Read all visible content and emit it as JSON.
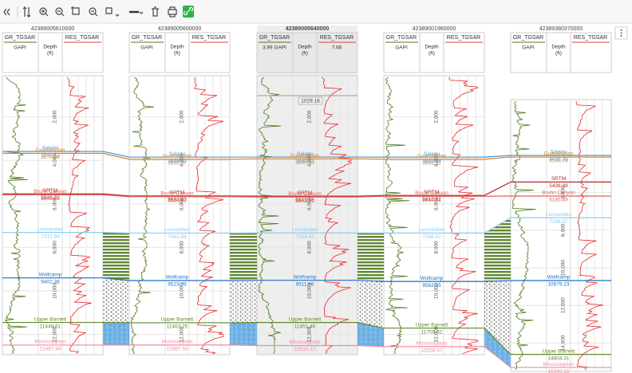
{
  "formations": [
    {
      "name": "Salado",
      "color": "#3d9be0"
    },
    {
      "name": "Guadalupian",
      "color": "#d9822b"
    },
    {
      "name": "SRTM",
      "color": "#b22a2a"
    },
    {
      "name": "Bruhn Canyon",
      "color": "#e0605a"
    },
    {
      "name": "Leonardian",
      "color": "#8ecbf0"
    },
    {
      "name": "Wolfcamp",
      "color": "#1f6fc0"
    },
    {
      "name": "Upper Barnett",
      "color": "#5f8a2a"
    },
    {
      "name": "Mississippian",
      "color": "#f08aa0"
    }
  ],
  "wells": [
    {
      "id": "42389005610000",
      "gr_curve": "GR_TGSAR",
      "res_curve": "RES_TGSAR",
      "gr_unit": "GAPI",
      "depth_label": "Depth",
      "depth_unit": "(ft)",
      "depth_ticks": [
        "2,000",
        "4,000",
        "6,000",
        "8,000",
        "10,000",
        "12,000"
      ],
      "tops": [
        {
          "formation": 0,
          "depth": "3590.12"
        },
        {
          "formation": 1,
          "depth": "3676.58"
        },
        {
          "formation": 2,
          "depth": "5540.20"
        },
        {
          "formation": 3,
          "depth": "5581.65"
        },
        {
          "formation": 4,
          "depth": "7312.84"
        },
        {
          "formation": 5,
          "depth": "9402.38"
        },
        {
          "formation": 6,
          "depth": "11448.61"
        },
        {
          "formation": 7,
          "depth": "12487.84"
        }
      ]
    },
    {
      "id": "42389005600000",
      "gr_curve": "GR_TGSAR",
      "res_curve": "RES_TGSAR",
      "gr_unit": "GAPI",
      "depth_label": "Depth",
      "depth_unit": "(ft)",
      "depth_ticks": [
        "2,000",
        "4,000",
        "6,000",
        "8,000",
        "10,000",
        "12,000"
      ],
      "tops": [
        {
          "formation": 0,
          "depth": "3848.60"
        },
        {
          "formation": 1,
          "depth": "3946.37"
        },
        {
          "formation": 2,
          "depth": "5634.40"
        },
        {
          "formation": 3,
          "depth": "5668.12"
        },
        {
          "formation": 4,
          "depth": "7342.84"
        },
        {
          "formation": 5,
          "depth": "9523.76"
        },
        {
          "formation": 6,
          "depth": "11463.25"
        },
        {
          "formation": 7,
          "depth": "12487.53"
        }
      ]
    },
    {
      "id": "42389005640000",
      "gr_curve": "GR_TGSAR",
      "res_curve": "RES_TGSAR",
      "gr_unit": "3.99 GAPI",
      "res_readout": "7.66",
      "cursor_depth": "1029.16",
      "depth_label": "Depth",
      "depth_unit": "(ft)",
      "depth_ticks": [
        "2,000",
        "4,000",
        "6,000",
        "8,000",
        "10,000",
        "12,000"
      ],
      "tops": [
        {
          "formation": 0,
          "depth": "3848.43"
        },
        {
          "formation": 1,
          "depth": "3930.98"
        },
        {
          "formation": 2,
          "depth": "5643.46"
        },
        {
          "formation": 3,
          "depth": "5681.20"
        },
        {
          "formation": 4,
          "depth": "7334.63"
        },
        {
          "formation": 5,
          "depth": "9511.96"
        },
        {
          "formation": 6,
          "depth": "11451.46"
        },
        {
          "formation": 7,
          "depth": "12510.12"
        }
      ]
    },
    {
      "id": "42389001960000",
      "gr_curve": "GR_TGSAR",
      "res_curve": "RES_TGSAR",
      "gr_unit": "GAPI",
      "depth_label": "Depth",
      "depth_unit": "(ft)",
      "depth_ticks": [
        "2,000",
        "4,000",
        "6,000",
        "8,000",
        "10,000",
        "12,000"
      ],
      "tops": [
        {
          "formation": 0,
          "depth": "3849.88"
        },
        {
          "formation": 1,
          "depth": "3946.12"
        },
        {
          "formation": 2,
          "depth": "5612.32"
        },
        {
          "formation": 3,
          "depth": "5650.71"
        },
        {
          "formation": 4,
          "depth": "7338.52"
        },
        {
          "formation": 5,
          "depth": "9563.95"
        },
        {
          "formation": 6,
          "depth": "11709.32"
        },
        {
          "formation": 7,
          "depth": "12558.47"
        }
      ]
    },
    {
      "id": "42389380370000",
      "gr_curve": "GR_TGSAR",
      "res_curve": "RES_TGSAR",
      "gr_unit": "GAPI",
      "depth_label": "Depth",
      "depth_unit": "(ft)",
      "depth_ticks": [
        "6,000",
        "8,000",
        "10,000",
        "12,000",
        "14,000"
      ],
      "tops": [
        {
          "formation": 0,
          "depth": "4026.35"
        },
        {
          "formation": 1,
          "depth": "4108.74"
        },
        {
          "formation": 2,
          "depth": "5438.99"
        },
        {
          "formation": 3,
          "depth": "6185.49"
        },
        {
          "formation": 4,
          "depth": "7336.57"
        },
        {
          "formation": 5,
          "depth": "10679.23"
        },
        {
          "formation": 6,
          "depth": "14604.31"
        },
        {
          "formation": 7,
          "depth": "15300.18"
        }
      ]
    }
  ]
}
